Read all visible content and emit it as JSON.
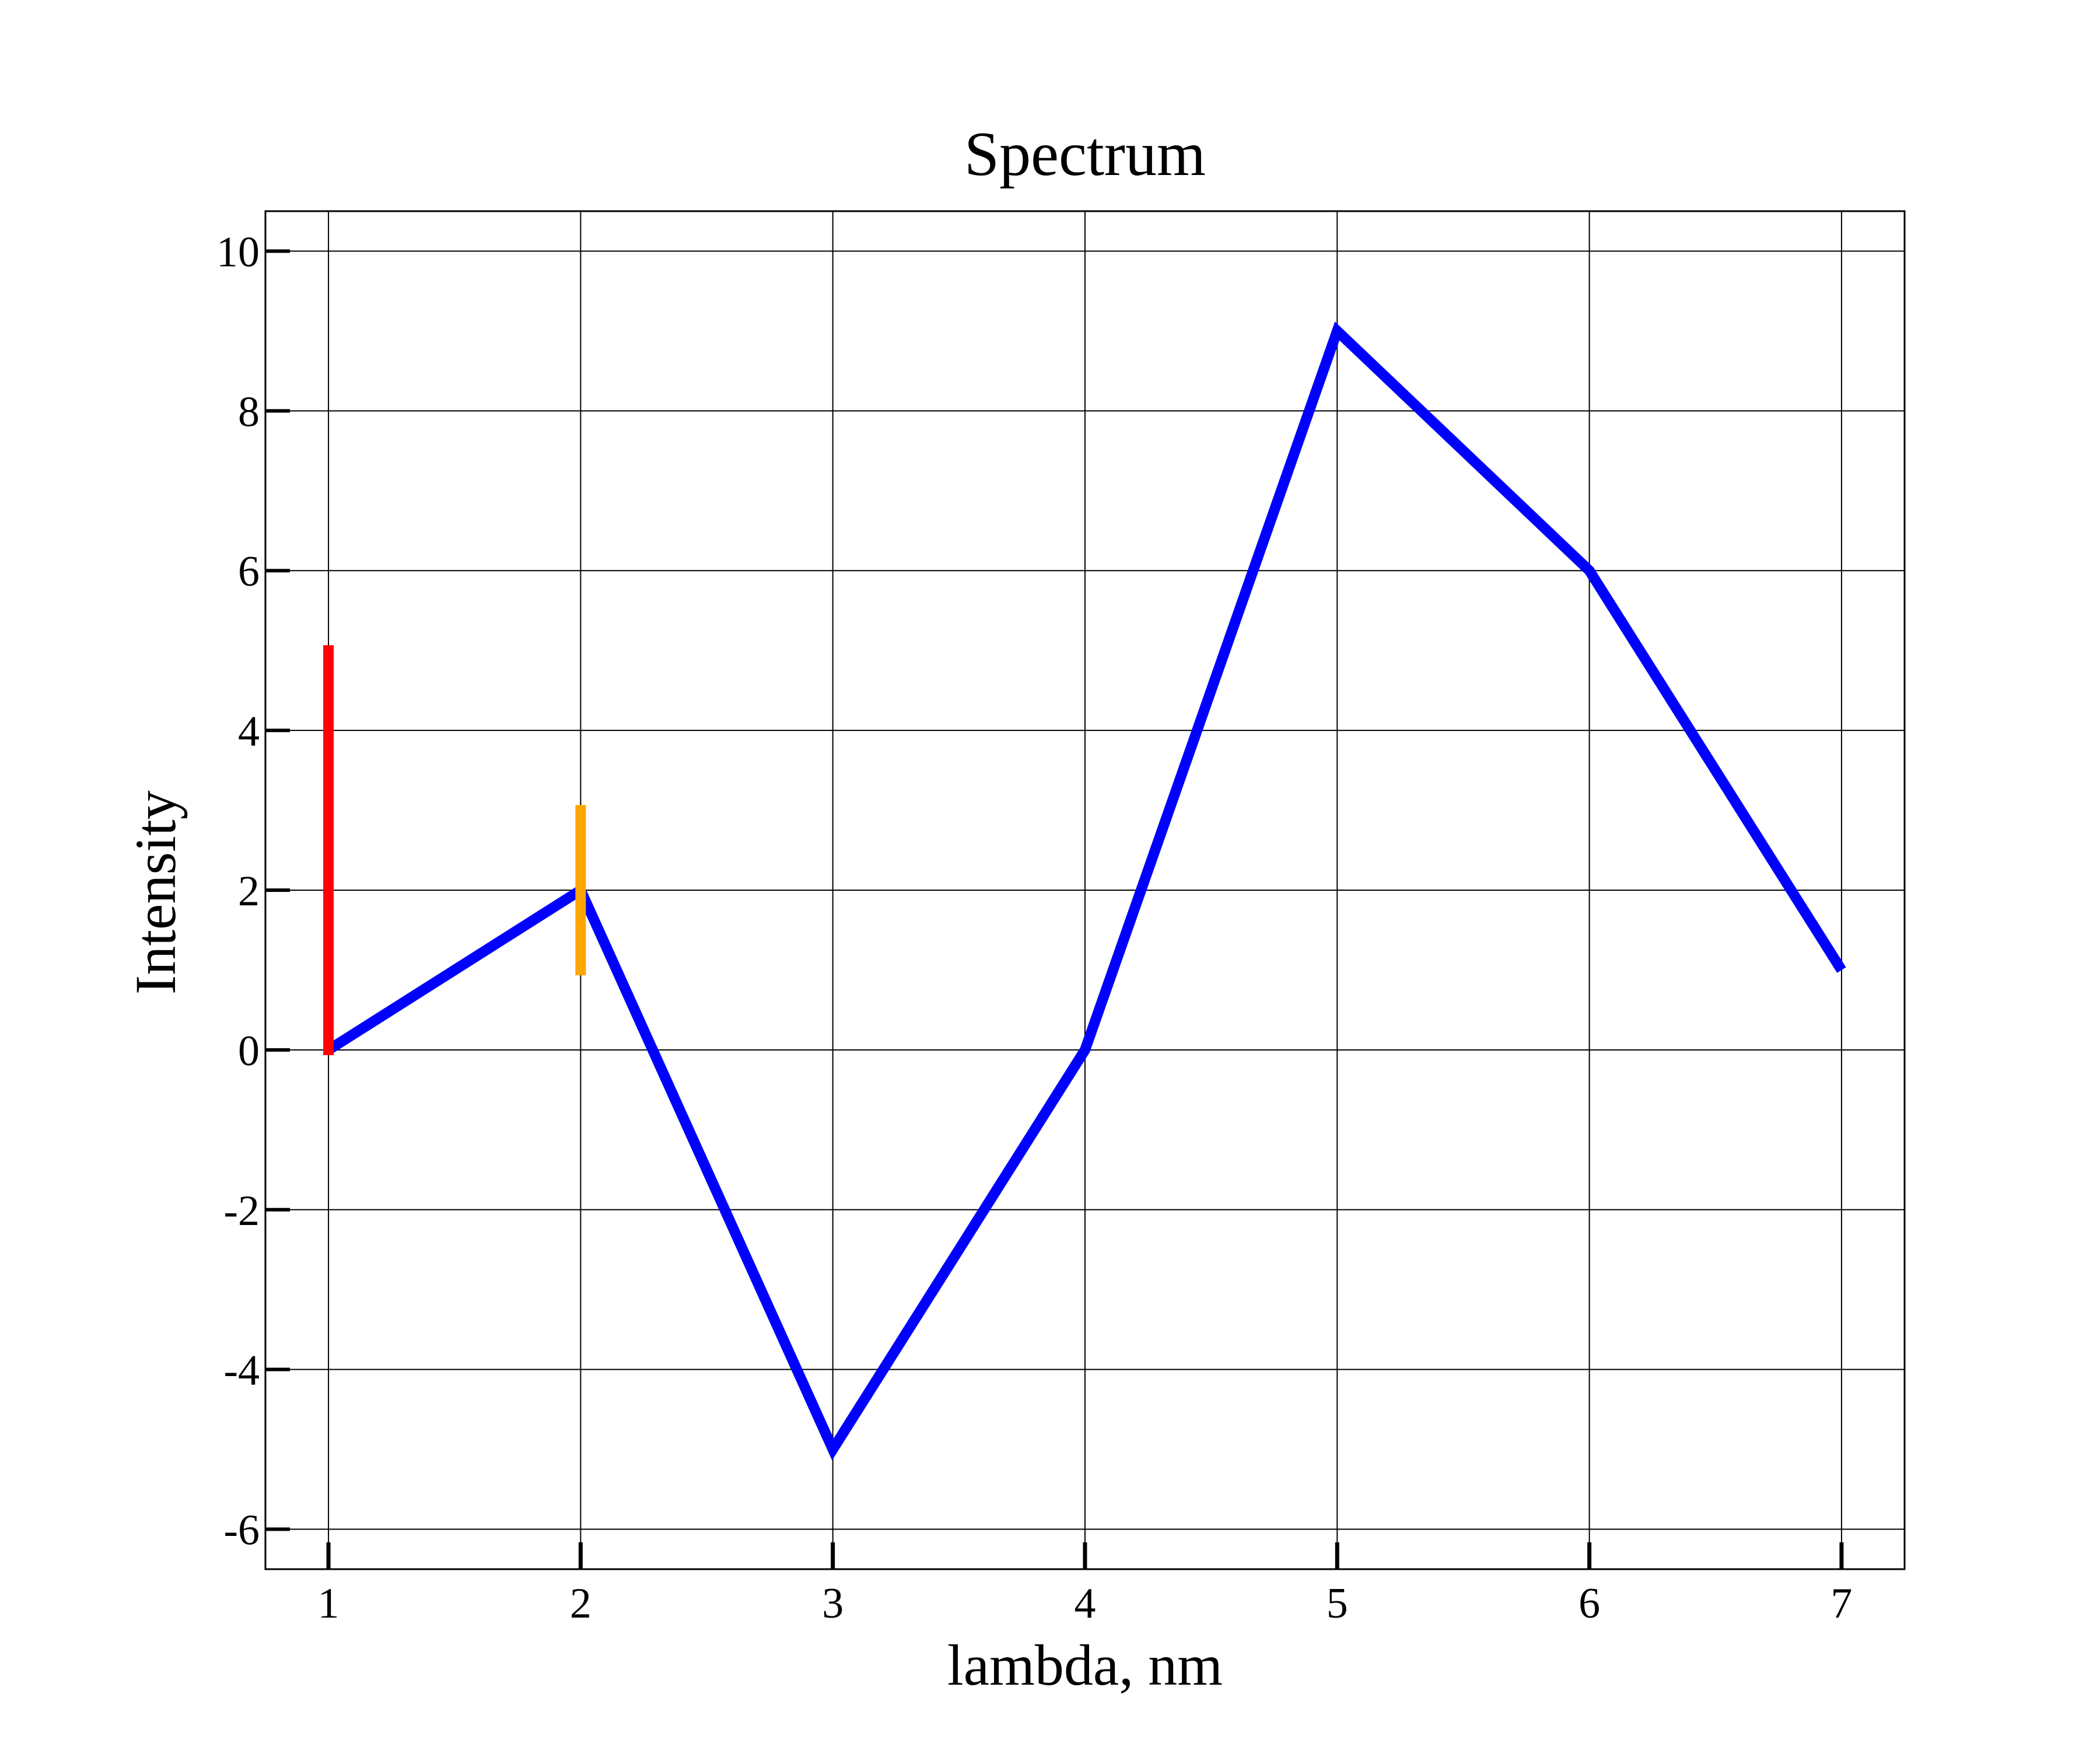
{
  "chart_data": {
    "type": "line",
    "title": "Spectrum",
    "xlabel": "lambda, nm",
    "ylabel": "Intensity",
    "xlim": [
      0.75,
      7.25
    ],
    "ylim": [
      -6.5,
      10.5
    ],
    "x_ticks": [
      1,
      2,
      3,
      4,
      5,
      6,
      7
    ],
    "y_ticks": [
      -6,
      -4,
      -2,
      0,
      2,
      4,
      6,
      8,
      10
    ],
    "x_tick_labels": [
      "1",
      "2",
      "3",
      "4",
      "5",
      "6",
      "7"
    ],
    "y_tick_labels": [
      "-6",
      "-4",
      "-2",
      "0",
      "2",
      "4",
      "6",
      "8",
      "10"
    ],
    "grid": true,
    "series": [
      {
        "x": [
          1,
          2,
          3,
          4,
          5,
          6,
          7
        ],
        "values": [
          0,
          2,
          -5,
          0,
          9,
          6,
          1
        ],
        "color": "#0000ff"
      }
    ],
    "error_bars": [
      {
        "x": 1,
        "y_low": 0,
        "y_high": 5,
        "color": "#ff0000"
      },
      {
        "x": 2,
        "y_low": 1,
        "y_high": 3,
        "color": "#ffa500"
      }
    ]
  }
}
